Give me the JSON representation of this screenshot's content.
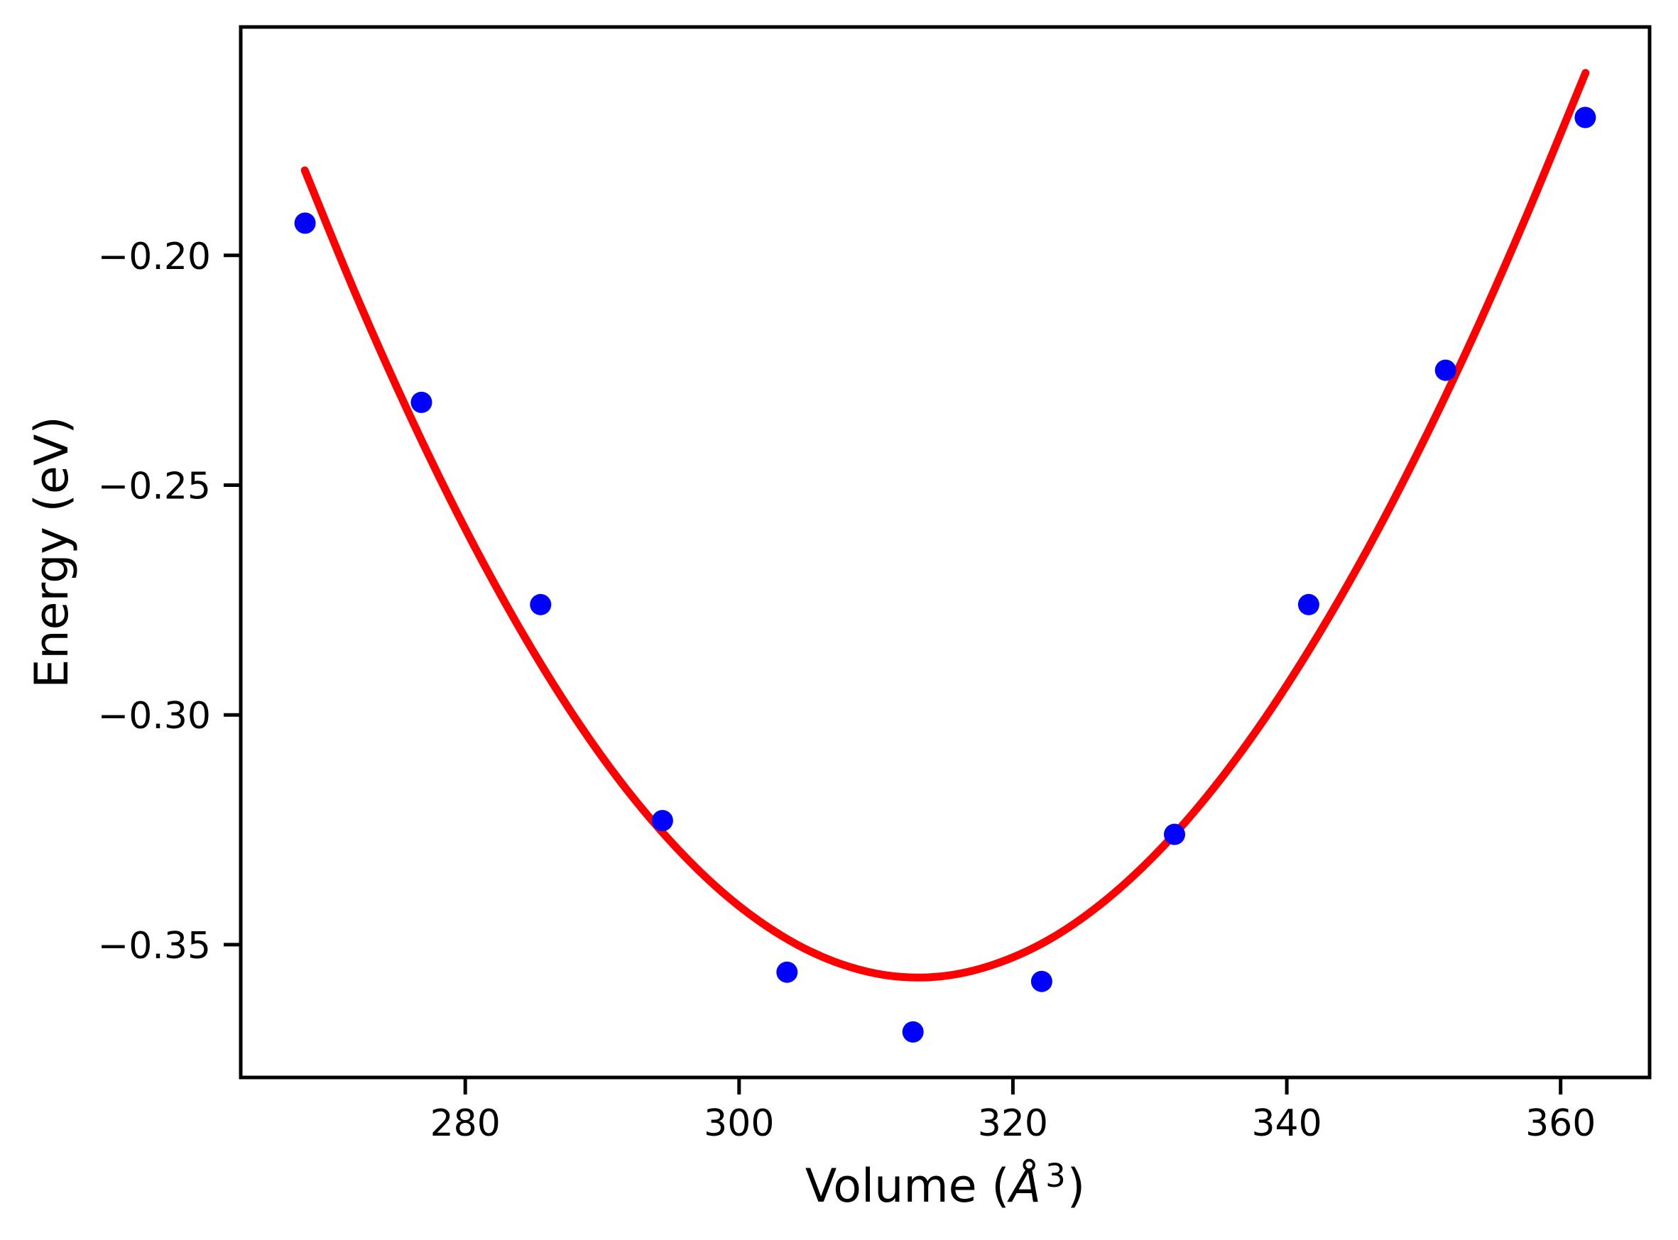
{
  "figure": {
    "background": "#ffffff",
    "title": ""
  },
  "chart_data": {
    "type": "scatter",
    "title": "",
    "xlabel": "Volume (Å³)",
    "xlabel_parts": {
      "prefix": "Volume (",
      "symbol": "Å",
      "exponent": "3",
      "suffix": ")"
    },
    "ylabel": "Energy (eV)",
    "xlim": [
      263.6,
      366.5
    ],
    "ylim": [
      -0.3789,
      -0.1503
    ],
    "grid": false,
    "legend": false,
    "axis_color": "#000000",
    "x_ticks": [
      "280",
      "300",
      "320",
      "340",
      "360"
    ],
    "x_tick_values": [
      280,
      300,
      320,
      340,
      360
    ],
    "y_ticks": [
      "−0.20",
      "−0.25",
      "−0.30",
      "−0.35"
    ],
    "y_tick_values": [
      -0.2,
      -0.25,
      -0.3,
      -0.35
    ],
    "series": [
      {
        "name": "energy-points",
        "style": "scatter",
        "color": "#0000ff",
        "x": [
          268.3,
          276.8,
          285.5,
          294.4,
          303.5,
          312.7,
          322.1,
          331.8,
          341.6,
          351.6,
          361.8
        ],
        "y": [
          -0.193,
          -0.232,
          -0.276,
          -0.323,
          -0.356,
          -0.369,
          -0.358,
          -0.326,
          -0.276,
          -0.225,
          -0.17
        ]
      },
      {
        "name": "eos-fit-curve",
        "style": "line",
        "color": "#ff0000",
        "x": [
          268.28,
          271.96,
          275.85,
          279.74,
          283.63,
          287.52,
          291.41,
          295.3,
          299.18,
          303.07,
          306.96,
          310.85,
          314.74,
          318.63,
          322.52,
          326.41,
          330.3,
          334.18,
          338.07,
          341.96,
          345.85,
          349.74,
          353.63,
          357.52,
          361.82
        ],
        "y": [
          -0.1815,
          -0.2082,
          -0.2342,
          -0.258,
          -0.2794,
          -0.2984,
          -0.3148,
          -0.3285,
          -0.3396,
          -0.348,
          -0.3537,
          -0.3567,
          -0.3569,
          -0.3543,
          -0.3491,
          -0.3412,
          -0.3307,
          -0.3177,
          -0.3022,
          -0.2843,
          -0.2642,
          -0.2419,
          -0.2176,
          -0.1913,
          -0.1603
        ]
      }
    ]
  }
}
